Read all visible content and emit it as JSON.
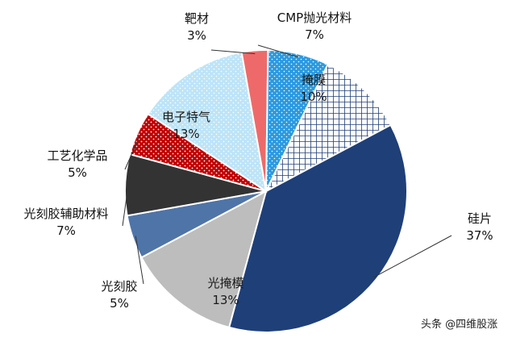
{
  "watermark": "头条 @四维股涨",
  "chart_data": {
    "type": "pie",
    "title": "",
    "legend": "none",
    "slices": [
      {
        "label": "硅片",
        "value": 37,
        "pct": "37%",
        "color": "#1f3f78",
        "pattern": "solid"
      },
      {
        "label": "光掩模",
        "value": 13,
        "pct": "13%",
        "color": "#bdbdbd",
        "pattern": "solid"
      },
      {
        "label": "光刻胶",
        "value": 5,
        "pct": "5%",
        "color": "#4f74a8",
        "pattern": "solid"
      },
      {
        "label": "光刻胶辅助材料",
        "value": 7,
        "pct": "7%",
        "color": "#333333",
        "pattern": "solid"
      },
      {
        "label": "工艺化学品",
        "value": 5,
        "pct": "5%",
        "color": "#c00000",
        "pattern": "dots"
      },
      {
        "label": "电子特气",
        "value": 13,
        "pct": "13%",
        "color": "#bde4f7",
        "pattern": "dots"
      },
      {
        "label": "靶材",
        "value": 3,
        "pct": "3%",
        "color": "#ee6a6a",
        "pattern": "solid"
      },
      {
        "label": "CMP抛光材料",
        "value": 7,
        "pct": "7%",
        "color": "#2b9ae0",
        "pattern": "dots"
      },
      {
        "label": "掩膜",
        "value": 10,
        "pct": "10%",
        "color": "#1f3f78",
        "pattern": "grid"
      }
    ]
  }
}
